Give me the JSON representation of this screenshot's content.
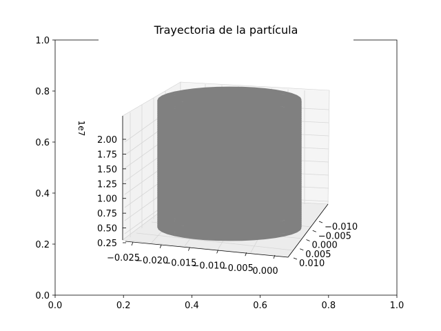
{
  "chart_data": {
    "type": "line",
    "title": "Trayectoria de la partícula",
    "background_axes": {
      "xlim": [
        0,
        1
      ],
      "ylim": [
        0,
        1
      ],
      "xticks": [
        "0.0",
        "0.2",
        "0.4",
        "0.6",
        "0.8",
        "1.0"
      ],
      "yticks": [
        "0.0",
        "0.2",
        "0.4",
        "0.6",
        "0.8",
        "1.0"
      ]
    },
    "axes3d": {
      "projection": "3d",
      "grid": true,
      "x_ticks": [
        "−0.025",
        "−0.020",
        "−0.015",
        "−0.010",
        "−0.005",
        "0.000"
      ],
      "y_ticks": [
        "−0.010",
        "−0.005",
        "0.000",
        "0.005",
        "0.010"
      ],
      "z_ticks": [
        "0.25",
        "0.50",
        "0.75",
        "1.00",
        "1.25",
        "1.50",
        "1.75",
        "2.00"
      ],
      "z_offset_label": "1e7",
      "xlim": [
        -0.026,
        0.0
      ],
      "ylim": [
        -0.013,
        0.013
      ],
      "zlim": [
        0.0,
        23000000.0
      ],
      "series": [
        {
          "color": "#808080",
          "shape": "helix",
          "center": [
            -0.0125,
            0.0
          ],
          "radius": 0.0125,
          "z_range": [
            0.0,
            22000000.0
          ],
          "turns": 120
        }
      ]
    }
  }
}
